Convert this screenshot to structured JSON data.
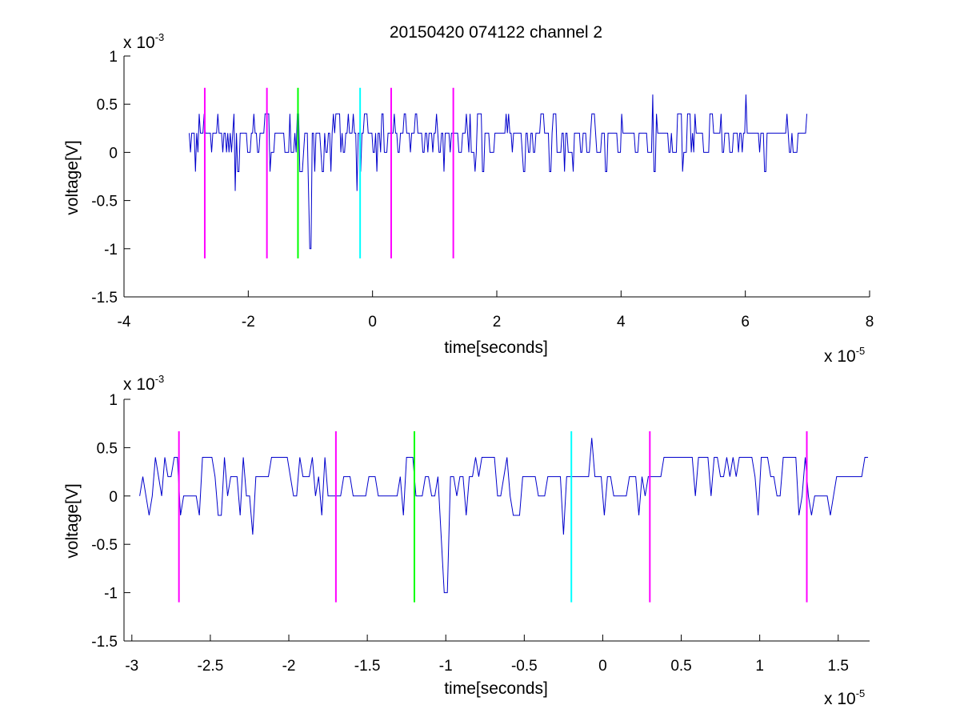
{
  "figure": {
    "title": "20150420 074122 channel 2"
  },
  "colors": {
    "signal": "#0000cc",
    "magenta": "#ff00ff",
    "green": "#00ff00",
    "cyan": "#00ffff",
    "axis": "#000000",
    "background": "#ffffff"
  },
  "chart_data": [
    {
      "type": "line",
      "name": "top-plot",
      "xlabel": "time[seconds]",
      "ylabel": "voltage[V]",
      "x_exponent_label": {
        "base": "x 10",
        "power": "-5"
      },
      "y_exponent_label": {
        "base": "x 10",
        "power": "-3"
      },
      "xlim": [
        -4,
        8
      ],
      "ylim": [
        -1.5,
        1
      ],
      "x_ticks": [
        -4,
        -2,
        0,
        2,
        4,
        6,
        8
      ],
      "x_tick_labels": [
        "-4",
        "-2",
        "0",
        "2",
        "4",
        "6",
        "8"
      ],
      "y_ticks": [
        -1.5,
        -1,
        -0.5,
        0,
        0.5,
        1
      ],
      "y_tick_labels": [
        "-1.5",
        "-1",
        "-0.5",
        "0",
        "0.5",
        "1"
      ],
      "grid": false,
      "units_note": "x in 1e-5 s, y in 1e-3 V",
      "signal": {
        "x_start": -2.95,
        "x_end": 7.0,
        "levels": [
          -0.2,
          0,
          0.2,
          0.4
        ],
        "dominant_level": 0.2,
        "notable_dips": [
          {
            "x": -2.2,
            "y": -0.4
          },
          {
            "x": -1.0,
            "y": -1.0
          },
          {
            "x": -0.25,
            "y": -0.4
          }
        ],
        "notable_peaks": [
          {
            "x": 4.5,
            "y": 0.6
          },
          {
            "x": 6.0,
            "y": 0.6
          }
        ]
      },
      "markers": [
        {
          "x": -2.7,
          "y0": -1.1,
          "y1": 0.67,
          "color": "magenta"
        },
        {
          "x": -1.7,
          "y0": -1.1,
          "y1": 0.67,
          "color": "magenta"
        },
        {
          "x": -1.2,
          "y0": -1.1,
          "y1": 0.67,
          "color": "green"
        },
        {
          "x": -0.2,
          "y0": -1.1,
          "y1": 0.67,
          "color": "cyan"
        },
        {
          "x": 0.3,
          "y0": -1.1,
          "y1": 0.67,
          "color": "magenta"
        },
        {
          "x": 1.3,
          "y0": -1.1,
          "y1": 0.67,
          "color": "magenta"
        }
      ]
    },
    {
      "type": "line",
      "name": "bottom-plot",
      "xlabel": "time[seconds]",
      "ylabel": "voltage[V]",
      "x_exponent_label": {
        "base": "x 10",
        "power": "-5"
      },
      "y_exponent_label": {
        "base": "x 10",
        "power": "-3"
      },
      "xlim": [
        -3.05,
        1.7
      ],
      "ylim": [
        -1.5,
        1
      ],
      "x_ticks": [
        -3,
        -2.5,
        -2,
        -1.5,
        -1,
        -0.5,
        0,
        0.5,
        1,
        1.5
      ],
      "x_tick_labels": [
        "-3",
        "-2.5",
        "-2",
        "-1.5",
        "-1",
        "-0.5",
        "0",
        "0.5",
        "1",
        "1.5"
      ],
      "y_ticks": [
        -1.5,
        -1,
        -0.5,
        0,
        0.5,
        1
      ],
      "y_tick_labels": [
        "-1.5",
        "-1",
        "-0.5",
        "0",
        "0.5",
        "1"
      ],
      "grid": false,
      "units_note": "x in 1e-5 s, y in 1e-3 V",
      "signal": {
        "x_start": -2.95,
        "x_end": 1.7,
        "levels": [
          -0.2,
          0,
          0.2,
          0.4
        ],
        "dominant_level": 0.2,
        "notable_dips": [
          {
            "x": -2.23,
            "y": -0.4
          },
          {
            "x": -1.0,
            "y": -1.0
          },
          {
            "x": -0.25,
            "y": -0.4
          }
        ],
        "notable_peaks": [
          {
            "x": -0.07,
            "y": 0.6
          }
        ]
      },
      "markers": [
        {
          "x": -2.7,
          "y0": -1.1,
          "y1": 0.67,
          "color": "magenta"
        },
        {
          "x": -1.7,
          "y0": -1.1,
          "y1": 0.67,
          "color": "magenta"
        },
        {
          "x": -1.2,
          "y0": -1.1,
          "y1": 0.67,
          "color": "green"
        },
        {
          "x": -0.2,
          "y0": -1.1,
          "y1": 0.67,
          "color": "cyan"
        },
        {
          "x": 0.3,
          "y0": -1.1,
          "y1": 0.67,
          "color": "magenta"
        },
        {
          "x": 1.3,
          "y0": -1.1,
          "y1": 0.67,
          "color": "magenta"
        }
      ]
    }
  ]
}
